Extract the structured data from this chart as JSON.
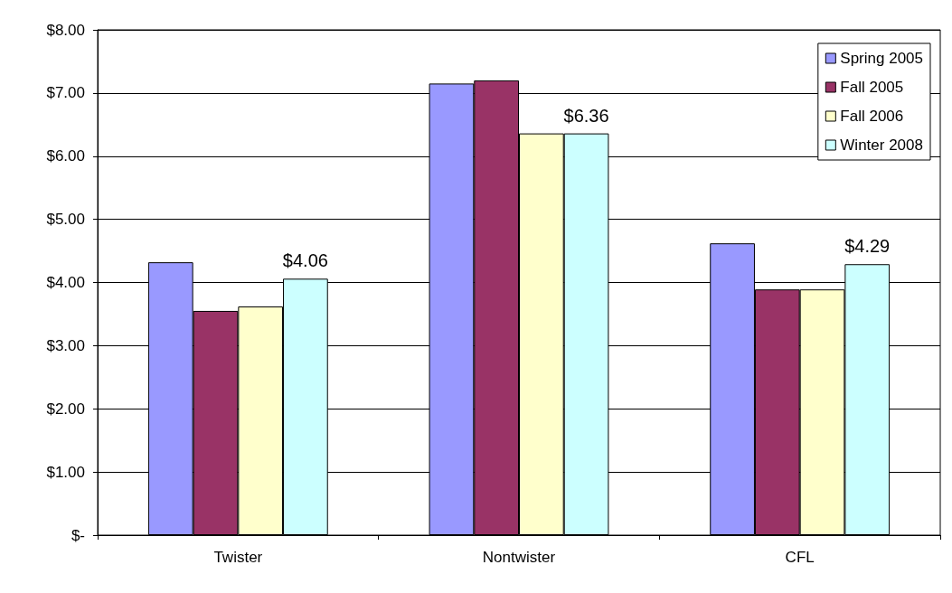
{
  "chart_data": {
    "type": "bar",
    "categories": [
      "Twister",
      "Nontwister",
      "CFL"
    ],
    "series": [
      {
        "name": "Spring 2005",
        "color": "#9999ff",
        "values": [
          4.32,
          7.15,
          4.62
        ]
      },
      {
        "name": "Fall 2005",
        "color": "#993366",
        "values": [
          3.55,
          7.2,
          3.89
        ]
      },
      {
        "name": "Fall 2006",
        "color": "#ffffcc",
        "values": [
          3.62,
          6.36,
          3.89
        ]
      },
      {
        "name": "Winter 2008",
        "color": "#ccffff",
        "values": [
          4.06,
          6.36,
          4.29
        ],
        "value_labels": [
          "$4.06",
          "$6.36",
          "$4.29"
        ]
      }
    ],
    "ylim": [
      0,
      8
    ],
    "yticks": [
      {
        "value": 0,
        "label": "$-"
      },
      {
        "value": 1,
        "label": "$1.00"
      },
      {
        "value": 2,
        "label": "$2.00"
      },
      {
        "value": 3,
        "label": "$3.00"
      },
      {
        "value": 4,
        "label": "$4.00"
      },
      {
        "value": 5,
        "label": "$5.00"
      },
      {
        "value": 6,
        "label": "$6.00"
      },
      {
        "value": 7,
        "label": "$7.00"
      },
      {
        "value": 8,
        "label": "$8.00"
      }
    ],
    "grid": "y",
    "legend": "top right"
  }
}
